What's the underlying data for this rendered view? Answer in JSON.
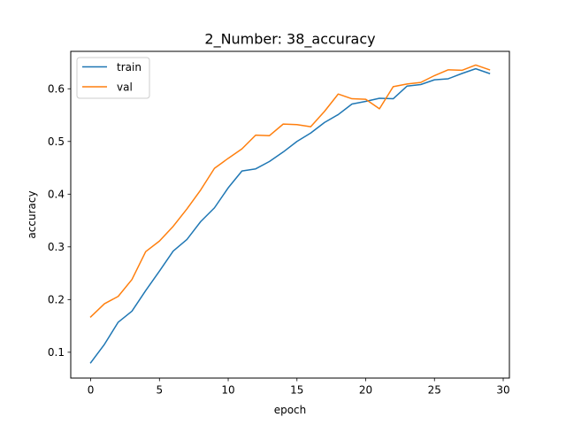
{
  "chart_data": {
    "type": "line",
    "title": "2_Number: 38_accuracy",
    "xlabel": "epoch",
    "ylabel": "accuracy",
    "xlim": [
      -1.45,
      30.45
    ],
    "ylim": [
      0.051,
      0.671
    ],
    "xticks": [
      0,
      5,
      10,
      15,
      20,
      25,
      30
    ],
    "yticks": [
      0.1,
      0.2,
      0.3,
      0.4,
      0.5,
      0.6
    ],
    "ytick_labels": [
      "0.1",
      "0.2",
      "0.3",
      "0.4",
      "0.5",
      "0.6"
    ],
    "grid": false,
    "legend_position": "top-left",
    "x": [
      0,
      1,
      2,
      3,
      4,
      5,
      6,
      7,
      8,
      9,
      10,
      11,
      12,
      13,
      14,
      15,
      16,
      17,
      18,
      19,
      20,
      21,
      22,
      23,
      24,
      25,
      26,
      27,
      28,
      29
    ],
    "series": [
      {
        "name": "train",
        "color": "#1f77b4",
        "values": [
          0.08,
          0.115,
          0.157,
          0.178,
          0.217,
          0.254,
          0.292,
          0.314,
          0.348,
          0.374,
          0.412,
          0.444,
          0.448,
          0.462,
          0.48,
          0.5,
          0.516,
          0.536,
          0.551,
          0.571,
          0.576,
          0.582,
          0.581,
          0.605,
          0.608,
          0.617,
          0.619,
          0.629,
          0.638,
          0.629
        ]
      },
      {
        "name": "val",
        "color": "#ff7f0e",
        "values": [
          0.167,
          0.192,
          0.206,
          0.238,
          0.291,
          0.311,
          0.339,
          0.372,
          0.408,
          0.449,
          0.468,
          0.486,
          0.512,
          0.511,
          0.533,
          0.532,
          0.528,
          0.557,
          0.59,
          0.581,
          0.58,
          0.562,
          0.604,
          0.609,
          0.612,
          0.625,
          0.636,
          0.635,
          0.645,
          0.636
        ]
      }
    ]
  }
}
